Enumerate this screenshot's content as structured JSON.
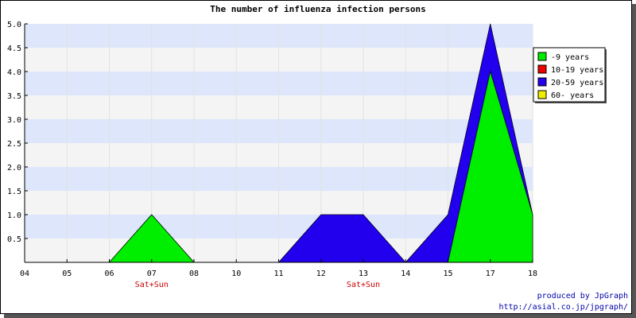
{
  "chart_data": {
    "type": "area",
    "stacked": true,
    "title": "The number of influenza infection persons",
    "xlabel": "",
    "ylabel": "",
    "categories": [
      "04",
      "05",
      "06",
      "07",
      "08",
      "10",
      "11",
      "12",
      "13",
      "14",
      "15",
      "17",
      "18"
    ],
    "category_notes": [
      "",
      "",
      "",
      "Sat+Sun",
      "",
      "",
      "",
      "",
      "Sat+Sun",
      "",
      "",
      "",
      ""
    ],
    "ylim": [
      0,
      5.0
    ],
    "yticks": [
      "0.5",
      "1.0",
      "1.5",
      "2.0",
      "2.5",
      "3.0",
      "3.5",
      "4.0",
      "4.5",
      "5.0"
    ],
    "grid": true,
    "band_colors": [
      "#dde6fb",
      "#f4f4f4"
    ],
    "legend_position": "top-right",
    "series": [
      {
        "name": "-9 years",
        "color": "#00ee00",
        "values": [
          0,
          0,
          0,
          1,
          0,
          0,
          0,
          0,
          0,
          0,
          0,
          4,
          1
        ]
      },
      {
        "name": "10-19 years",
        "color": "#ee0000",
        "values": [
          0,
          0,
          0,
          0,
          0,
          0,
          0,
          0,
          0,
          0,
          0,
          0,
          0
        ]
      },
      {
        "name": "20-59 years",
        "color": "#2200ee",
        "values": [
          0,
          0,
          0,
          0,
          0,
          0,
          0,
          1,
          1,
          0,
          1,
          1,
          0
        ]
      },
      {
        "name": "60- years",
        "color": "#eeee00",
        "values": [
          0,
          0,
          0,
          0,
          0,
          0,
          0,
          0,
          0,
          0,
          0,
          0,
          0
        ]
      }
    ]
  },
  "credits": {
    "line1": "produced by JpGraph",
    "line2": "http://asial.co.jp/jpgraph/"
  }
}
